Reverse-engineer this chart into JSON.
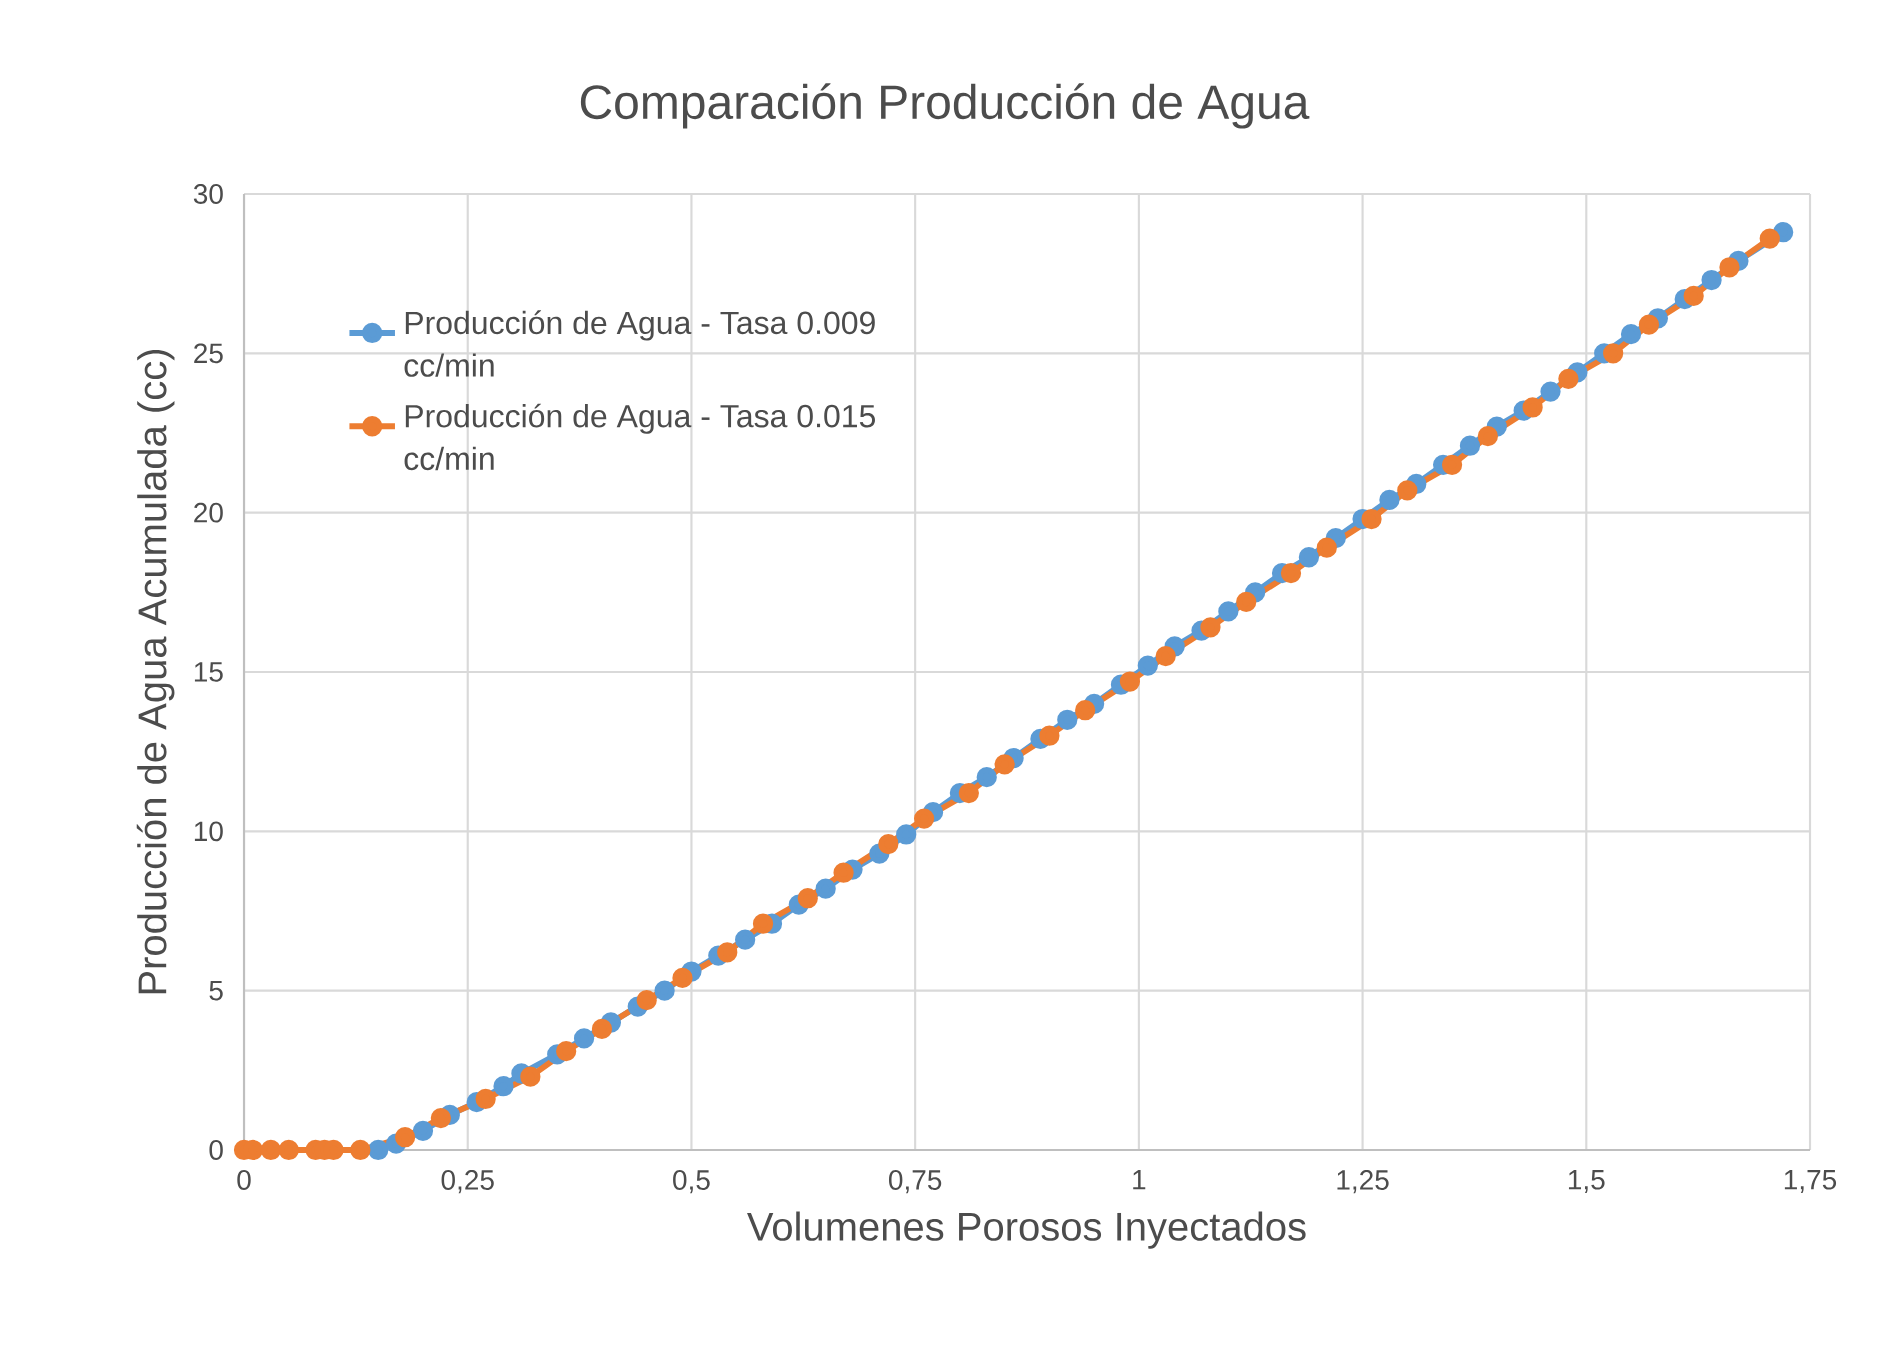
{
  "chart_data": {
    "type": "line",
    "title": "Comparación Producción de Agua",
    "xlabel": "Volumenes Porosos Inyectados",
    "ylabel": "Producción de Agua Acumulada (cc)",
    "xlim": [
      0,
      1.75
    ],
    "xticks": [
      0,
      {
        "value": 0.25,
        "label": "0,25"
      },
      {
        "value": 0.5,
        "label": "0,5"
      },
      {
        "value": 0.75,
        "label": "0,75"
      },
      1,
      {
        "value": 1.25,
        "label": "1,25"
      },
      {
        "value": 1.5,
        "label": "1,5"
      },
      {
        "value": 1.75,
        "label": "1,75"
      }
    ],
    "ylim": [
      0,
      30
    ],
    "yticks": [
      0,
      5,
      10,
      15,
      20,
      25,
      30
    ],
    "grid": true,
    "legend": "top left",
    "marker": "circle",
    "line_style": "solid",
    "series": [
      {
        "name": "Producción de Agua - Tasa 0.009 cc/min",
        "color": "#5b9bd5",
        "x": [
          0.15,
          0.17,
          0.2,
          0.23,
          0.26,
          0.29,
          0.31,
          0.35,
          0.38,
          0.41,
          0.44,
          0.47,
          0.5,
          0.53,
          0.56,
          0.59,
          0.62,
          0.65,
          0.68,
          0.71,
          0.74,
          0.77,
          0.8,
          0.83,
          0.86,
          0.89,
          0.92,
          0.95,
          0.98,
          1.01,
          1.04,
          1.07,
          1.1,
          1.13,
          1.16,
          1.19,
          1.22,
          1.25,
          1.28,
          1.31,
          1.34,
          1.37,
          1.4,
          1.43,
          1.46,
          1.49,
          1.52,
          1.55,
          1.58,
          1.61,
          1.64,
          1.67,
          1.72
        ],
        "values": [
          0,
          0.2,
          0.6,
          1.1,
          1.5,
          2.0,
          2.4,
          3.0,
          3.5,
          4.0,
          4.5,
          5.0,
          5.6,
          6.1,
          6.6,
          7.1,
          7.7,
          8.2,
          8.8,
          9.3,
          9.9,
          10.6,
          11.2,
          11.7,
          12.3,
          12.9,
          13.5,
          14.0,
          14.6,
          15.2,
          15.8,
          16.3,
          16.9,
          17.5,
          18.1,
          18.6,
          19.2,
          19.8,
          20.4,
          20.9,
          21.5,
          22.1,
          22.7,
          23.2,
          23.8,
          24.4,
          25.0,
          25.6,
          26.1,
          26.7,
          27.3,
          27.9,
          28.8
        ]
      },
      {
        "name": "Producción de Agua - Tasa 0.015 cc/min",
        "color": "#ed7d31",
        "x": [
          0,
          0.01,
          0.03,
          0.05,
          0.08,
          0.09,
          0.1,
          0.13,
          0.18,
          0.22,
          0.27,
          0.32,
          0.36,
          0.4,
          0.45,
          0.49,
          0.54,
          0.58,
          0.63,
          0.67,
          0.72,
          0.76,
          0.81,
          0.85,
          0.9,
          0.94,
          0.99,
          1.03,
          1.08,
          1.12,
          1.17,
          1.21,
          1.26,
          1.3,
          1.35,
          1.39,
          1.44,
          1.48,
          1.53,
          1.57,
          1.62,
          1.66,
          1.705
        ],
        "values": [
          0,
          0,
          0,
          0,
          0,
          0,
          0,
          0,
          0.4,
          1.0,
          1.6,
          2.3,
          3.1,
          3.8,
          4.7,
          5.4,
          6.2,
          7.1,
          7.9,
          8.7,
          9.6,
          10.4,
          11.2,
          12.1,
          13.0,
          13.8,
          14.7,
          15.5,
          16.4,
          17.2,
          18.1,
          18.9,
          19.8,
          20.7,
          21.5,
          22.4,
          23.3,
          24.2,
          25.0,
          25.9,
          26.8,
          27.7,
          28.6
        ]
      }
    ]
  }
}
